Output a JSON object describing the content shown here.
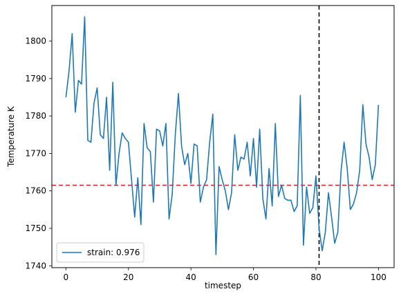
{
  "chart_data": {
    "type": "line",
    "title": "",
    "xlabel": "timestep",
    "ylabel": "Temperature K",
    "xlim": [
      -4.5,
      105
    ],
    "ylim": [
      1739.5,
      1809.5
    ],
    "x_ticks": [
      0,
      20,
      40,
      60,
      80,
      100
    ],
    "y_ticks": [
      1740,
      1750,
      1760,
      1770,
      1780,
      1790,
      1800
    ],
    "grid": false,
    "legend_position": "lower-left",
    "series": [
      {
        "name": "strain: 0.976",
        "color": "#1f77b4",
        "x": [
          0,
          1,
          2,
          3,
          4,
          5,
          6,
          7,
          8,
          9,
          10,
          11,
          12,
          13,
          14,
          15,
          16,
          17,
          18,
          19,
          20,
          21,
          22,
          23,
          24,
          25,
          26,
          27,
          28,
          29,
          30,
          31,
          32,
          33,
          34,
          35,
          36,
          37,
          38,
          39,
          40,
          41,
          42,
          43,
          44,
          45,
          46,
          47,
          48,
          49,
          50,
          51,
          52,
          53,
          54,
          55,
          56,
          57,
          58,
          59,
          60,
          61,
          62,
          63,
          64,
          65,
          66,
          67,
          68,
          69,
          70,
          71,
          72,
          73,
          74,
          75,
          76,
          77,
          78,
          79,
          80,
          81,
          82,
          83,
          84,
          85,
          86,
          87,
          88,
          89,
          90,
          91,
          92,
          93,
          94,
          95,
          96,
          97,
          98,
          99,
          100
        ],
        "values": [
          1785,
          1792,
          1802,
          1781,
          1789.5,
          1788.5,
          1806.5,
          1773.5,
          1773,
          1783.5,
          1787.5,
          1775,
          1774,
          1785,
          1765.5,
          1789,
          1761.5,
          1770,
          1775.5,
          1774,
          1773,
          1763,
          1753,
          1763.5,
          1751,
          1778,
          1771.5,
          1770.5,
          1757,
          1776.5,
          1776,
          1772,
          1778,
          1752.5,
          1759,
          1775,
          1786,
          1772,
          1767,
          1770,
          1762,
          1772.5,
          1772,
          1757,
          1761,
          1763,
          1773,
          1780.5,
          1743,
          1766.5,
          1763,
          1760,
          1755,
          1759.5,
          1775,
          1765.5,
          1769,
          1768.5,
          1773,
          1764,
          1774,
          1761,
          1776.5,
          1758,
          1752.5,
          1766,
          1756,
          1778,
          1758.5,
          1761.5,
          1758,
          1757.5,
          1757.5,
          1754.5,
          1756,
          1785.5,
          1745.5,
          1761,
          1754,
          1755.5,
          1764,
          1750,
          1744,
          1749,
          1759.5,
          1753,
          1746,
          1749,
          1765,
          1773,
          1766,
          1755,
          1756.5,
          1759.5,
          1765.5,
          1783,
          1772.5,
          1769,
          1763,
          1767,
          1783
        ]
      }
    ],
    "reference_lines": [
      {
        "orientation": "horizontal",
        "value": 1761.5,
        "color": "#d62728",
        "style": "dashed"
      },
      {
        "orientation": "vertical",
        "value": 81,
        "color": "#000000",
        "style": "dashed"
      }
    ]
  }
}
